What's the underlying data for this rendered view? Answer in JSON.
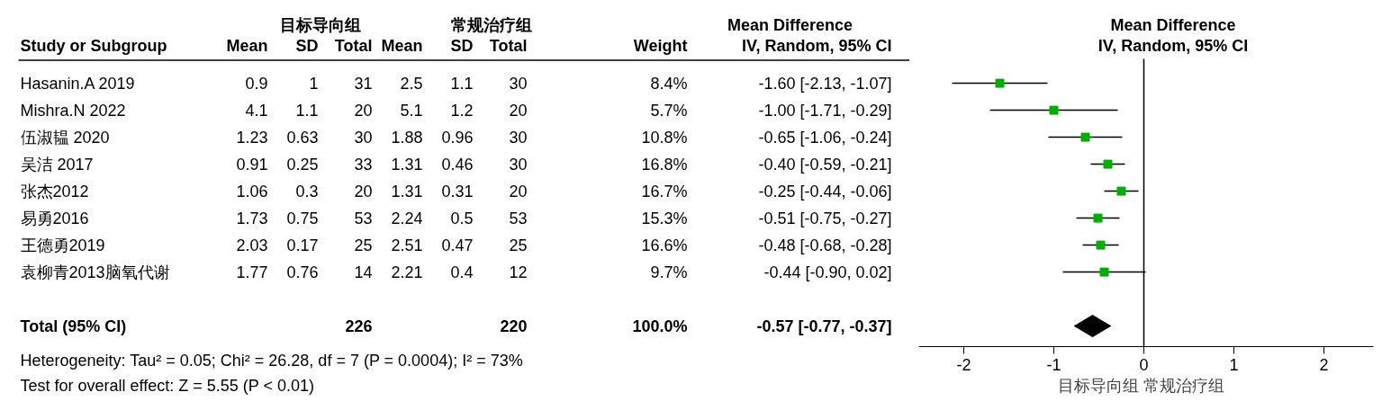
{
  "chart_data": [
    {
      "type": "other",
      "ylabel": "Study or Subgroup",
      "annotations": [
        "目标导向组",
        "常规治疗组",
        "Mean Difference",
        "Heterogeneity: Tau² = 0.05; Chi² = 26.28, df = 7 (P = 0.0004); I² = 73%",
        "Test for overall effect: Z = 5.55 (P < 0.01)"
      ],
      "categories": [
        "Hasanin.A 2019",
        "Mishra.N 2022",
        "伍淑韫 2020",
        "吴洁 2017",
        "张杰2012",
        "易勇2016",
        "王德勇2019",
        "袁柳青2013脑氧代谢",
        null,
        "Total (95% CI)"
      ],
      "series": [
        {
          "name": "Mean",
          "values": [
            0.9,
            4.1,
            1.23,
            0.91,
            1.06,
            1.73,
            2.03,
            1.77,
            null,
            null
          ],
          "value_labels": [
            "0.9",
            "4.1",
            "1.23",
            "0.91",
            "1.06",
            "1.73",
            "2.03",
            "1.77",
            null,
            null
          ]
        },
        {
          "name": "SD",
          "values": [
            1,
            1.1,
            0.63,
            0.25,
            0.3,
            0.75,
            0.17,
            0.76,
            null,
            null
          ],
          "value_labels": [
            "1",
            "1.1",
            "0.63",
            "0.25",
            "0.3",
            "0.75",
            "0.17",
            "0.76",
            null,
            null
          ]
        },
        {
          "name": "Total",
          "values": [
            31,
            20,
            30,
            33,
            20,
            53,
            25,
            14,
            null,
            226
          ],
          "value_labels": [
            "31",
            "20",
            "30",
            "33",
            "20",
            "53",
            "25",
            "14",
            null,
            "226"
          ]
        },
        {
          "name": "Mean",
          "values": [
            2.5,
            5.1,
            1.88,
            1.31,
            1.31,
            2.24,
            2.51,
            2.21,
            null,
            null
          ],
          "value_labels": [
            "2.5",
            "5.1",
            "1.88",
            "1.31",
            "1.31",
            "2.24",
            "2.51",
            "2.21",
            null,
            null
          ]
        },
        {
          "name": "SD",
          "values": [
            1.1,
            1.2,
            0.96,
            0.46,
            0.31,
            0.5,
            0.47,
            0.4,
            null,
            null
          ],
          "value_labels": [
            "1.1",
            "1.2",
            "0.96",
            "0.46",
            "0.31",
            "0.5",
            "0.47",
            "0.4",
            null,
            null
          ]
        },
        {
          "name": "Total",
          "values": [
            30,
            20,
            30,
            30,
            20,
            53,
            25,
            12,
            null,
            220
          ],
          "value_labels": [
            "30",
            "20",
            "30",
            "30",
            "20",
            "53",
            "25",
            "12",
            null,
            "220"
          ]
        },
        {
          "name": "Weight",
          "values": [
            8.4,
            5.7,
            10.8,
            16.8,
            16.7,
            15.3,
            16.6,
            9.7,
            null,
            100.0
          ],
          "value_labels": [
            "8.4%",
            "5.7%",
            "10.8%",
            "16.8%",
            "16.7%",
            "15.3%",
            "16.6%",
            "9.7%",
            null,
            "100.0%"
          ]
        },
        {
          "name": "IV, Random, 95% CI",
          "values": [
            -1.6,
            -1.0,
            -0.65,
            -0.4,
            -0.25,
            -0.51,
            -0.48,
            -0.44,
            null,
            -0.57
          ],
          "value_labels": [
            "-1.60 [-2.13, -1.07]",
            "-1.00 [-1.71, -0.29]",
            "-0.65 [-1.06, -0.24]",
            "-0.40 [-0.59, -0.21]",
            "-0.25 [-0.44, -0.06]",
            "-0.51 [-0.75, -0.27]",
            "-0.48 [-0.68, -0.28]",
            "-0.44 [-0.90, 0.02]",
            null,
            "-0.57 [-0.77, -0.37]"
          ]
        }
      ]
    },
    {
      "type": "scatter",
      "title": "Mean Difference",
      "subtitle": "IV, Random, 95% CI",
      "xlabel": "目标导向组   常规治疗组",
      "categories": [
        null,
        null,
        null,
        null,
        null,
        null,
        null,
        null,
        null,
        null
      ],
      "orientation": "horizontal",
      "xlim": [
        -2.5,
        2.55
      ],
      "xticks": [
        -2,
        -1,
        0,
        1,
        2
      ],
      "tick_labels": "x",
      "grid": false,
      "marker": "square",
      "ref_lines": [
        {
          "axis": "x",
          "value": 0,
          "color": "#000000"
        }
      ],
      "series": [
        {
          "color": "#00b000",
          "values": [
            -1.6,
            -1.0,
            -0.65,
            -0.4,
            -0.25,
            -0.51,
            -0.48,
            -0.44,
            null,
            null
          ],
          "errors": [
            [
              -2.13,
              -1.07
            ],
            [
              -1.71,
              -0.29
            ],
            [
              -1.06,
              -0.24
            ],
            [
              -0.59,
              -0.21
            ],
            [
              -0.44,
              -0.06
            ],
            [
              -0.75,
              -0.27
            ],
            [
              -0.68,
              -0.28
            ],
            [
              -0.9,
              0.02
            ],
            null,
            null
          ]
        },
        {
          "color": "#000000",
          "marker": "diamond",
          "values": [
            null,
            null,
            null,
            null,
            null,
            null,
            null,
            null,
            null,
            -0.57
          ],
          "errors": [
            null,
            null,
            null,
            null,
            null,
            null,
            null,
            null,
            null,
            [
              -0.77,
              -0.37
            ]
          ]
        }
      ]
    }
  ]
}
